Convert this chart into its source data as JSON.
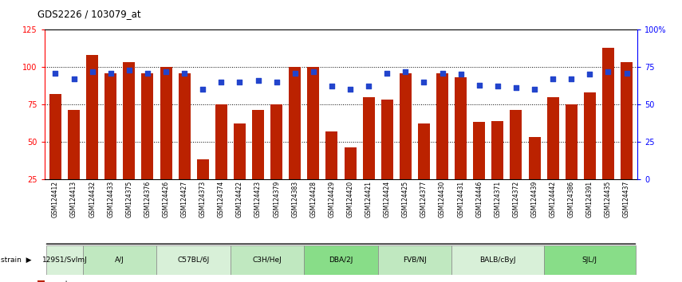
{
  "title": "GDS2226 / 103079_at",
  "samples": [
    "GSM124412",
    "GSM124413",
    "GSM124432",
    "GSM124433",
    "GSM124375",
    "GSM124376",
    "GSM124426",
    "GSM124427",
    "GSM124373",
    "GSM124374",
    "GSM124422",
    "GSM124423",
    "GSM124379",
    "GSM124383",
    "GSM124428",
    "GSM124429",
    "GSM124420",
    "GSM124421",
    "GSM124424",
    "GSM124425",
    "GSM124377",
    "GSM124430",
    "GSM124431",
    "GSM124446",
    "GSM124371",
    "GSM124372",
    "GSM124439",
    "GSM124442",
    "GSM124386",
    "GSM124391",
    "GSM124435",
    "GSM124437"
  ],
  "counts": [
    82,
    71,
    108,
    96,
    103,
    96,
    100,
    96,
    38,
    75,
    62,
    71,
    75,
    100,
    100,
    57,
    46,
    80,
    78,
    96,
    62,
    96,
    93,
    63,
    64,
    71,
    53,
    80,
    75,
    83,
    113,
    103
  ],
  "percentile_ranks": [
    71,
    67,
    72,
    71,
    73,
    71,
    72,
    71,
    60,
    65,
    65,
    66,
    65,
    71,
    72,
    62,
    60,
    62,
    71,
    72,
    65,
    71,
    70,
    63,
    62,
    61,
    60,
    67,
    67,
    70,
    72,
    71
  ],
  "strains": [
    {
      "name": "129S1/SvImJ",
      "start": 0,
      "end": 2
    },
    {
      "name": "A/J",
      "start": 2,
      "end": 6
    },
    {
      "name": "C57BL/6J",
      "start": 6,
      "end": 10
    },
    {
      "name": "C3H/HeJ",
      "start": 10,
      "end": 14
    },
    {
      "name": "DBA/2J",
      "start": 14,
      "end": 18
    },
    {
      "name": "FVB/NJ",
      "start": 18,
      "end": 22
    },
    {
      "name": "BALB/cByJ",
      "start": 22,
      "end": 27
    },
    {
      "name": "SJL/J",
      "start": 27,
      "end": 32
    }
  ],
  "strain_colors": {
    "129S1/SvImJ": "#d8f0d8",
    "A/J": "#c0e8c0",
    "C57BL/6J": "#d8f0d8",
    "C3H/HeJ": "#c0e8c0",
    "DBA/2J": "#88dd88",
    "FVB/NJ": "#c0e8c0",
    "BALB/cByJ": "#d8f0d8",
    "SJL/J": "#88dd88"
  },
  "bar_color": "#bb2200",
  "dot_color": "#2244cc",
  "ylim_left": [
    25,
    125
  ],
  "ylim_right": [
    0,
    100
  ],
  "yticks_left": [
    25,
    50,
    75,
    100,
    125
  ],
  "yticks_right": [
    0,
    25,
    50,
    75,
    100
  ]
}
